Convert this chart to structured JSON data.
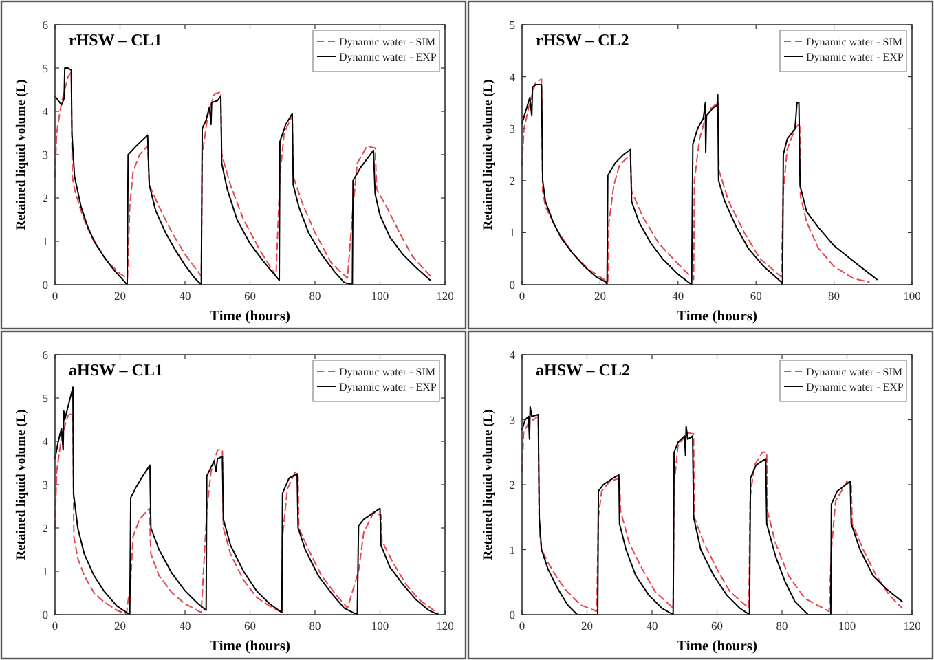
{
  "chart_data": [
    {
      "type": "line",
      "title": "rHSW – CL1",
      "xlabel": "Time (hours)",
      "ylabel": "Retained liquid volume (L)",
      "xlim": [
        0,
        120
      ],
      "ylim": [
        0,
        6
      ],
      "xticks": [
        0,
        20,
        40,
        60,
        80,
        100,
        120
      ],
      "yticks": [
        0,
        1,
        2,
        3,
        4,
        5,
        6
      ],
      "grid": false,
      "legend": "top right",
      "marker": "none",
      "series": [
        {
          "name": "Dynamic water - SIM",
          "color": "#e8474f",
          "line_style": "dashed",
          "x": [
            0,
            0.5,
            2,
            3,
            4,
            5,
            5.3,
            6,
            8,
            10,
            13,
            16,
            20,
            22.3,
            23,
            24,
            26,
            28.5,
            29,
            32,
            36,
            40,
            45,
            45.3,
            47,
            49,
            51,
            51.3,
            54,
            58,
            63,
            68,
            69.2,
            70.5,
            73,
            73.3,
            76,
            80,
            85,
            90,
            91.7,
            93,
            96,
            98.5,
            99,
            102,
            106,
            110,
            115.5
          ],
          "values": [
            2.5,
            3.5,
            4.2,
            4.5,
            4.8,
            4.9,
            2.5,
            2.2,
            1.7,
            1.3,
            0.9,
            0.55,
            0.25,
            0.15,
            1.8,
            2.6,
            3.0,
            3.2,
            2.3,
            1.8,
            1.2,
            0.7,
            0.2,
            3.0,
            3.9,
            4.4,
            4.45,
            3.0,
            2.3,
            1.5,
            0.8,
            0.2,
            2.5,
            3.5,
            3.9,
            2.5,
            1.9,
            1.2,
            0.5,
            0.15,
            1.8,
            2.8,
            3.2,
            3.15,
            2.2,
            1.8,
            1.2,
            0.65,
            0.2
          ]
        },
        {
          "name": "Dynamic water - EXP",
          "color": "#000000",
          "line_style": "solid",
          "x": [
            0,
            2,
            2.8,
            3,
            4,
            5,
            5.2,
            6,
            8,
            10,
            12,
            15,
            18,
            21,
            22.2,
            22.5,
            25,
            28.5,
            29,
            31,
            34,
            37,
            40,
            43,
            45,
            45.3,
            46.5,
            47.5,
            48,
            48.2,
            50,
            51,
            51.3,
            53,
            56,
            60,
            64,
            69,
            69.2,
            71,
            73,
            73.3,
            75,
            78,
            82,
            86,
            89,
            91.5,
            91.7,
            94,
            98,
            98.5,
            100,
            103,
            107,
            111,
            115.5
          ],
          "values": [
            4.35,
            4.15,
            4.3,
            5.0,
            5.0,
            4.95,
            3.5,
            2.5,
            1.8,
            1.35,
            1.0,
            0.65,
            0.35,
            0.1,
            0,
            3.0,
            3.2,
            3.45,
            2.3,
            1.7,
            1.2,
            0.8,
            0.45,
            0.15,
            0,
            3.6,
            3.8,
            4.1,
            3.7,
            4.2,
            4.25,
            4.35,
            2.8,
            2.2,
            1.5,
            0.95,
            0.55,
            0.1,
            3.3,
            3.7,
            3.95,
            2.3,
            1.8,
            1.2,
            0.7,
            0.3,
            0.05,
            0,
            2.4,
            2.7,
            3.1,
            2.1,
            1.6,
            1.1,
            0.7,
            0.4,
            0.1
          ]
        }
      ]
    },
    {
      "type": "line",
      "title": "rHSW – CL2",
      "xlabel": "Time (hours)",
      "ylabel": "Retained liquid volume (L)",
      "xlim": [
        0,
        100
      ],
      "ylim": [
        0,
        5
      ],
      "xticks": [
        0,
        20,
        40,
        60,
        80,
        100
      ],
      "yticks": [
        0,
        1,
        2,
        3,
        4,
        5
      ],
      "grid": false,
      "legend": "top right",
      "marker": "none",
      "series": [
        {
          "name": "Dynamic water - SIM",
          "color": "#e8474f",
          "line_style": "dashed",
          "x": [
            0,
            0.5,
            2,
            3.5,
            5,
            5.3,
            6,
            9,
            13,
            17,
            21,
            22,
            22.3,
            23.5,
            25,
            27.8,
            28.1,
            31,
            35,
            40,
            44,
            44.2,
            45.5,
            47,
            48.5,
            50.3,
            50.5,
            53,
            57,
            61,
            66.5,
            67,
            68,
            70,
            71.2,
            71.4,
            73,
            76,
            80,
            85,
            89
          ],
          "values": [
            2.3,
            3.0,
            3.5,
            3.9,
            3.95,
            1.8,
            1.5,
            1.05,
            0.6,
            0.3,
            0.1,
            0.05,
            1.2,
            1.9,
            2.3,
            2.5,
            1.8,
            1.3,
            0.8,
            0.4,
            0.1,
            2.0,
            2.8,
            3.2,
            3.4,
            3.5,
            2.2,
            1.6,
            1.0,
            0.5,
            0.15,
            1.8,
            2.6,
            3.0,
            3.1,
            1.7,
            1.2,
            0.7,
            0.35,
            0.12,
            0.05
          ]
        },
        {
          "name": "Dynamic water - EXP",
          "color": "#000000",
          "line_style": "solid",
          "x": [
            0,
            1,
            2,
            2.5,
            2.7,
            3.5,
            5,
            5.3,
            6,
            8,
            10,
            13,
            16,
            19,
            21.5,
            21.8,
            22,
            24,
            26,
            27.8,
            28.1,
            30,
            33,
            36,
            40,
            43.5,
            43.8,
            45,
            46.5,
            47,
            47.1,
            47.3,
            49,
            50,
            50.2,
            50.4,
            52,
            55,
            58,
            62,
            66.5,
            66.8,
            67,
            68,
            70,
            70.5,
            71,
            71.3,
            73,
            76,
            80,
            85,
            91
          ],
          "values": [
            3.1,
            3.35,
            3.6,
            3.25,
            3.8,
            3.85,
            3.85,
            2.0,
            1.6,
            1.2,
            0.9,
            0.6,
            0.35,
            0.15,
            0.05,
            0,
            2.1,
            2.35,
            2.5,
            2.6,
            1.6,
            1.2,
            0.8,
            0.5,
            0.2,
            0,
            2.7,
            3.0,
            3.2,
            3.5,
            2.55,
            3.25,
            3.4,
            3.45,
            3.65,
            2.0,
            1.6,
            1.1,
            0.7,
            0.35,
            0.05,
            0,
            2.5,
            2.8,
            3.0,
            3.5,
            3.5,
            1.9,
            1.4,
            1.1,
            0.75,
            0.45,
            0.1
          ]
        }
      ]
    },
    {
      "type": "line",
      "title": "aHSW – CL1",
      "xlabel": "Time (hours)",
      "ylabel": "Retained liquid volume (L)",
      "xlim": [
        0,
        120
      ],
      "ylim": [
        0,
        6
      ],
      "xticks": [
        0,
        20,
        40,
        60,
        80,
        100,
        120
      ],
      "yticks": [
        0,
        1,
        2,
        3,
        4,
        5,
        6
      ],
      "grid": false,
      "legend": "top right",
      "marker": "none",
      "series": [
        {
          "name": "Dynamic water - SIM",
          "color": "#e8474f",
          "line_style": "dashed",
          "x": [
            0,
            0.5,
            2,
            4,
            5.5,
            5.8,
            7,
            9,
            12,
            15,
            19,
            22,
            23.3,
            24,
            26,
            29,
            29.5,
            32,
            36,
            40,
            45,
            46.7,
            48,
            50,
            51.5,
            51.8,
            54,
            58,
            62,
            66,
            69.8,
            70,
            71.5,
            74,
            74.8,
            75,
            78,
            82,
            86,
            90,
            93.4,
            95,
            98,
            100.3,
            100.6,
            104,
            108,
            112,
            118
          ],
          "values": [
            2.0,
            3.3,
            4.1,
            4.6,
            4.65,
            1.8,
            1.3,
            0.9,
            0.5,
            0.3,
            0.1,
            0.02,
            0.8,
            1.8,
            2.2,
            2.45,
            1.4,
            0.9,
            0.5,
            0.25,
            0.05,
            2.4,
            3.3,
            3.8,
            3.8,
            2.0,
            1.4,
            0.8,
            0.4,
            0.2,
            0.05,
            1.8,
            2.9,
            3.3,
            3.2,
            2.0,
            1.5,
            0.9,
            0.5,
            0.15,
            1.0,
            1.9,
            2.35,
            2.3,
            1.7,
            1.2,
            0.7,
            0.35,
            0.02
          ]
        },
        {
          "name": "Dynamic water - EXP",
          "color": "#000000",
          "line_style": "solid",
          "x": [
            0,
            1,
            2,
            2.5,
            2.7,
            3,
            4,
            5,
            5.5,
            5.7,
            7,
            9,
            12,
            15,
            19,
            23,
            23.3,
            25,
            27,
            29.2,
            29.5,
            32,
            36,
            40,
            44,
            46.5,
            46.7,
            48,
            49,
            49.5,
            50,
            51.5,
            51.8,
            54,
            58,
            62,
            66,
            69.8,
            70,
            72,
            74.5,
            74.8,
            77,
            81,
            85,
            89,
            93,
            93.4,
            95,
            98,
            100,
            100.3,
            103,
            107,
            111,
            115,
            118
          ],
          "values": [
            3.6,
            4.0,
            4.3,
            3.8,
            4.7,
            4.5,
            4.8,
            5.1,
            5.25,
            2.8,
            2.0,
            1.4,
            0.9,
            0.55,
            0.2,
            0,
            2.7,
            2.95,
            3.2,
            3.45,
            2.0,
            1.5,
            0.95,
            0.55,
            0.25,
            0.1,
            3.2,
            3.4,
            3.55,
            3.3,
            3.6,
            3.65,
            2.2,
            1.6,
            1.0,
            0.55,
            0.25,
            0.05,
            2.8,
            3.15,
            3.25,
            2.0,
            1.5,
            0.9,
            0.5,
            0.15,
            0,
            2.05,
            2.2,
            2.35,
            2.45,
            1.6,
            1.1,
            0.7,
            0.35,
            0.1,
            0
          ]
        }
      ]
    },
    {
      "type": "line",
      "title": "aHSW – CL2",
      "xlabel": "Time (hours)",
      "ylabel": "Retained liquid volume (L)",
      "xlim": [
        0,
        120
      ],
      "ylim": [
        0,
        4
      ],
      "xticks": [
        0,
        20,
        40,
        60,
        80,
        100,
        120
      ],
      "yticks": [
        0,
        1,
        2,
        3,
        4
      ],
      "grid": false,
      "legend": "top right",
      "marker": "none",
      "series": [
        {
          "name": "Dynamic water - SIM",
          "color": "#e8474f",
          "line_style": "dashed",
          "x": [
            0,
            0.5,
            2,
            5,
            5.3,
            6,
            8,
            11,
            14,
            18,
            23,
            23.5,
            24.5,
            27,
            30,
            30.3,
            33,
            37,
            41,
            46.5,
            46.8,
            48,
            51,
            52.8,
            53,
            56,
            60,
            64,
            69.8,
            70.2,
            71.5,
            74,
            75.3,
            75.5,
            78,
            82,
            87,
            94.5,
            95.2,
            96.5,
            100,
            101.3,
            101.6,
            105,
            109,
            113,
            117
          ],
          "values": [
            2.2,
            2.8,
            2.95,
            3.05,
            1.3,
            1.0,
            0.8,
            0.55,
            0.35,
            0.15,
            0.05,
            1.5,
            1.9,
            2.05,
            2.1,
            1.6,
            1.1,
            0.7,
            0.35,
            0.1,
            2.0,
            2.6,
            2.8,
            2.78,
            1.5,
            1.1,
            0.7,
            0.35,
            0.1,
            1.8,
            2.3,
            2.5,
            2.5,
            1.6,
            1.1,
            0.6,
            0.25,
            0.05,
            1.0,
            1.75,
            2.05,
            2.0,
            1.4,
            1.0,
            0.6,
            0.3,
            0.1
          ]
        },
        {
          "name": "Dynamic water - EXP",
          "color": "#000000",
          "line_style": "solid",
          "x": [
            0,
            1,
            2,
            2.3,
            2.5,
            3,
            5,
            5.3,
            6,
            8,
            11,
            14,
            17,
            23.3,
            23.5,
            25,
            28,
            29.8,
            30,
            32,
            35,
            39,
            43,
            46.5,
            46.8,
            48,
            50,
            50.3,
            50.5,
            51,
            52.5,
            52.8,
            55,
            59,
            63,
            67,
            70,
            70.3,
            72,
            75,
            75.3,
            78,
            81,
            84,
            88,
            95,
            95.2,
            97,
            101,
            101.3,
            104,
            108,
            112,
            117
          ],
          "values": [
            2.85,
            3.0,
            3.05,
            2.7,
            3.2,
            3.05,
            3.08,
            1.5,
            1.0,
            0.7,
            0.4,
            0.15,
            0,
            0,
            1.9,
            2.0,
            2.1,
            2.15,
            1.4,
            1.0,
            0.6,
            0.3,
            0.1,
            0,
            2.5,
            2.65,
            2.75,
            2.45,
            2.9,
            2.7,
            2.75,
            1.5,
            1.0,
            0.6,
            0.3,
            0.1,
            0,
            2.1,
            2.3,
            2.4,
            1.4,
            0.9,
            0.5,
            0.2,
            0,
            0,
            1.7,
            1.9,
            2.05,
            1.4,
            1.0,
            0.6,
            0.4,
            0.2
          ]
        }
      ]
    }
  ]
}
